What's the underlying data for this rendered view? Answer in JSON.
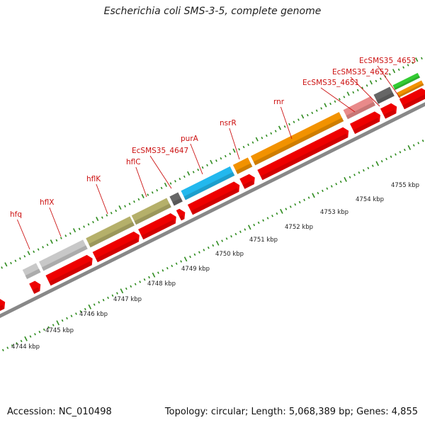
{
  "header": {
    "title": "Escherichia coli SMS-3-5, complete genome"
  },
  "footer": {
    "accession": "Accession: NC_010498",
    "topology": "Topology: circular; Length: 5,068,389 bp; Genes: 4,855"
  },
  "colors": {
    "cds_red": "#ee0000",
    "pink": "#e98a8a",
    "light_gray": "#c8c8c8",
    "olive": "#b5b06a",
    "dark_gray": "#666666",
    "blue": "#22b8ee",
    "orange": "#f29200",
    "green": "#33cc33",
    "label_red": "#cc1111",
    "tick_green": "#2e8b1e",
    "backbone": "#888888"
  },
  "gene_labels": [
    {
      "name": "hfq"
    },
    {
      "name": "hflX"
    },
    {
      "name": "hflK"
    },
    {
      "name": "hflC"
    },
    {
      "name": "EcSMS35_4647"
    },
    {
      "name": "purA"
    },
    {
      "name": "nsrR"
    },
    {
      "name": "rnr"
    },
    {
      "name": "EcSMS35_4651"
    },
    {
      "name": "EcSMS35_4652"
    },
    {
      "name": "EcSMS35_4653"
    }
  ],
  "kbp_labels": [
    "4744 kbp",
    "4745 kbp",
    "4746 kbp",
    "4747 kbp",
    "4748 kbp",
    "4749 kbp",
    "4750 kbp",
    "4751 kbp",
    "4752 kbp",
    "4753 kbp",
    "4754 kbp",
    "4755 kbp"
  ]
}
